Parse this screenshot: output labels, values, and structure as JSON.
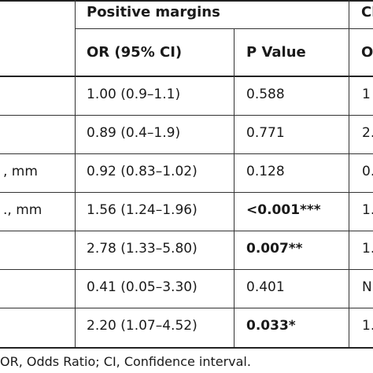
{
  "header": {
    "group_title": "Positive margins",
    "group_title_right_fragment": "Cl",
    "col_or": "OR (95% CI)",
    "col_p": "P Value",
    "col_right_fragment": "O"
  },
  "rows": [
    {
      "label": "",
      "or": "1.00 (0.9–1.1)",
      "p": "0.588",
      "right": "1"
    },
    {
      "label": "",
      "or": "0.89 (0.4–1.9)",
      "p": "0.771",
      "right": "2."
    },
    {
      "label": ", mm",
      "or": "0.92 (0.83–1.02)",
      "p": "0.128",
      "right": "0."
    },
    {
      "label": "., mm",
      "or": "1.56 (1.24–1.96)",
      "p": "<0.001***",
      "right": "1."
    },
    {
      "label": "",
      "or": "2.78 (1.33–5.80)",
      "p": "0.007**",
      "right": "1."
    },
    {
      "label": "",
      "or": "0.41 (0.05–3.30)",
      "p": "0.401",
      "right": "N"
    },
    {
      "label": "",
      "or": "2.20 (1.07–4.52)",
      "p": "0.033*",
      "right": "1."
    }
  ],
  "footnote": "OR, Odds Ratio; CI, Confidence interval."
}
